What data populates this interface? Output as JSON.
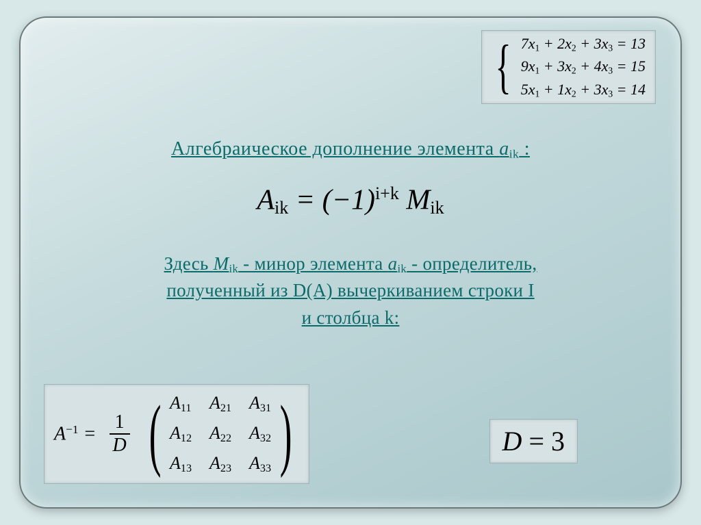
{
  "colors": {
    "slide_bg_from": "#e2edee",
    "slide_bg_to": "#a9c7cb",
    "teal_text": "#0b6b6b",
    "box_bg": "#d6e2e4",
    "box_border": "#9fb4b6"
  },
  "fontsizes": {
    "title": 28,
    "desc": 27,
    "formula_main": 42,
    "system": 22,
    "inverse": 28,
    "det": 40
  },
  "system": {
    "rows": [
      {
        "a1": "7",
        "a2": "2",
        "a3": "3",
        "rhs": "13"
      },
      {
        "a1": "9",
        "a2": "3",
        "a3": "4",
        "rhs": "15"
      },
      {
        "a1": "5",
        "a2": "1",
        "a3": "3",
        "rhs": "14"
      }
    ]
  },
  "title": {
    "text_before": "Алгебраическое дополнение элемента ",
    "elem": "a",
    "elem_sub": "ik",
    "after": " :"
  },
  "formula": {
    "lhs_var": "A",
    "lhs_sub": "ik",
    "eq": " = (−1)",
    "exp": "i+k",
    "rhs_var": " M",
    "rhs_sub": "ik"
  },
  "desc": {
    "line1_a": "Здесь ",
    "M": "M",
    "M_sub": "ik",
    "line1_b": "  - минор элемента ",
    "a": "a",
    "a_sub": "ik",
    "line1_c": "  - определитель,",
    "line2": " полученный из D(A) вычеркиванием строки I",
    "line3": "и столбца k:"
  },
  "inverse": {
    "A": "A",
    "A_sup": "−1",
    "eq": " =",
    "frac_num": "1",
    "frac_den": "D",
    "matrix": [
      [
        "A",
        "11",
        "A",
        "21",
        "A",
        "31"
      ],
      [
        "A",
        "12",
        "A",
        "22",
        "A",
        "32"
      ],
      [
        "A",
        "13",
        "A",
        "23",
        "A",
        "33"
      ]
    ]
  },
  "det": {
    "var": "D",
    "eq": " = ",
    "val": "3"
  }
}
